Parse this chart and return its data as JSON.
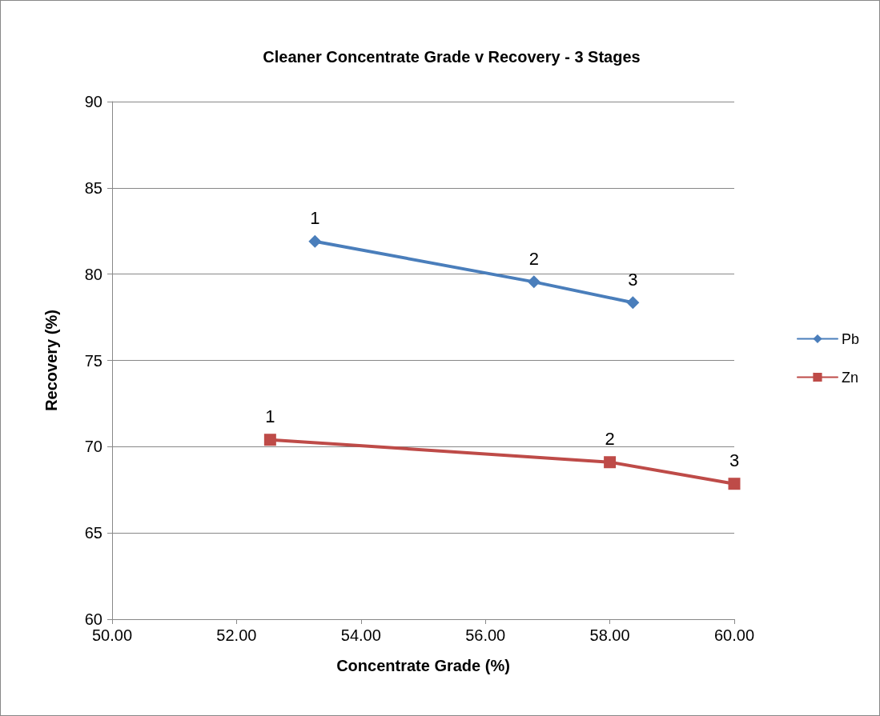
{
  "chart_data": {
    "type": "line",
    "title": "Cleaner Concentrate Grade v Recovery - 3 Stages",
    "xlabel": "Concentrate Grade (%)",
    "ylabel": "Recovery (%)",
    "series": [
      {
        "name": "Pb",
        "color": "#4a7ebb",
        "marker": "diamond",
        "x": [
          53.26,
          56.78,
          58.37
        ],
        "values": [
          81.9,
          79.55,
          78.35
        ]
      },
      {
        "name": "Zn",
        "color": "#be4b48",
        "marker": "square",
        "x": [
          52.54,
          58.0,
          60.0
        ],
        "values": [
          70.4,
          69.1,
          67.85
        ]
      }
    ],
    "annotations": [
      {
        "text": "1",
        "x": 53.26,
        "y": 81.9
      },
      {
        "text": "2",
        "x": 56.78,
        "y": 79.55
      },
      {
        "text": "3",
        "x": 58.37,
        "y": 78.35
      },
      {
        "text": "1",
        "x": 52.54,
        "y": 70.4
      },
      {
        "text": "2",
        "x": 58.0,
        "y": 69.1
      },
      {
        "text": "3",
        "x": 60.0,
        "y": 67.85
      }
    ],
    "xlim": [
      50,
      60
    ],
    "xticks": [
      {
        "value": 50,
        "label": "50.00"
      },
      {
        "value": 52,
        "label": "52.00"
      },
      {
        "value": 54,
        "label": "54.00"
      },
      {
        "value": 56,
        "label": "56.00"
      },
      {
        "value": 58,
        "label": "58.00"
      },
      {
        "value": 60,
        "label": "60.00"
      }
    ],
    "ylim": [
      60,
      90
    ],
    "yticks": [
      60,
      65,
      70,
      75,
      80,
      85,
      90
    ],
    "grid": "y",
    "legend": "right",
    "line_style": "solid"
  }
}
